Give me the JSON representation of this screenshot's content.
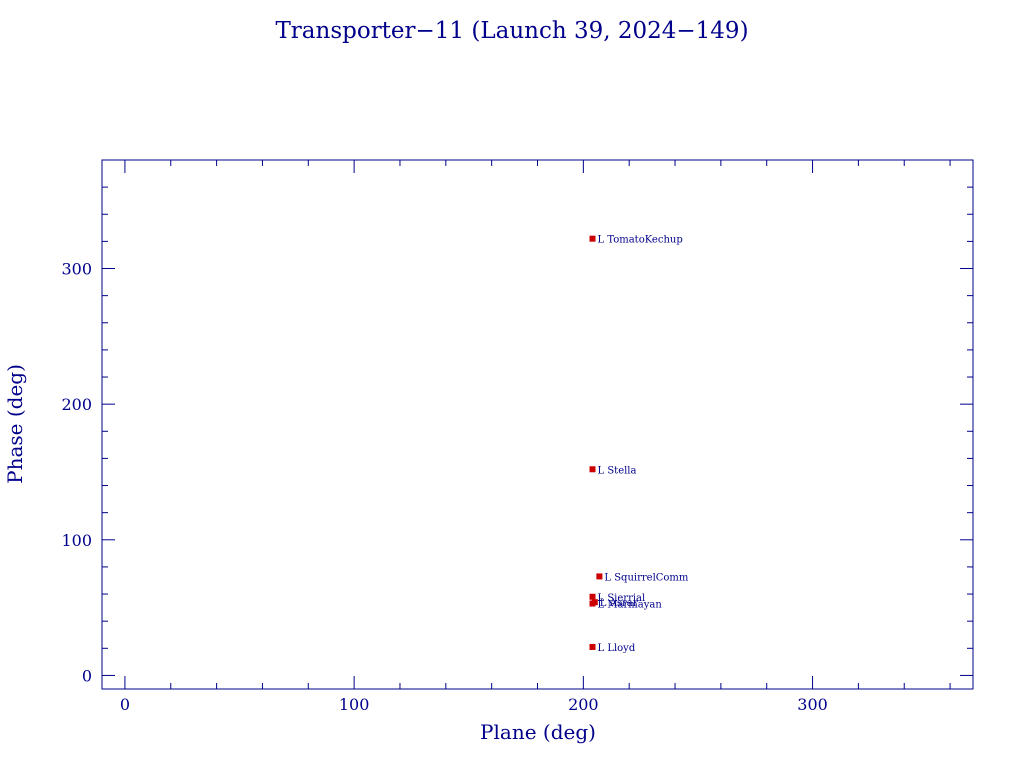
{
  "colors": {
    "axis": "#00008B",
    "text": "#00008B",
    "point": "#CC0000",
    "background": "#FFFFFF"
  },
  "chart_data": {
    "type": "scatter",
    "title": "Transporter−11 (Launch 39, 2024−149)",
    "xlabel": "Plane (deg)",
    "ylabel": "Phase (deg)",
    "xlim": [
      -10,
      370
    ],
    "ylim": [
      -10,
      380
    ],
    "xticks": [
      0,
      100,
      200,
      300
    ],
    "yticks": [
      0,
      100,
      200,
      300
    ],
    "grid": false,
    "legend": "none",
    "points": [
      {
        "x": 204,
        "y": 322,
        "label": "L TomatoKechup"
      },
      {
        "x": 204,
        "y": 152,
        "label": "L Stella"
      },
      {
        "x": 207,
        "y": 73,
        "label": "L SquirrelComm"
      },
      {
        "x": 204,
        "y": 58,
        "label": "L Sierrial"
      },
      {
        "x": 205,
        "y": 54,
        "label": "L Asrar"
      },
      {
        "x": 204,
        "y": 53,
        "label": "L Marmayan"
      },
      {
        "x": 204,
        "y": 21,
        "label": "L Lloyd"
      }
    ]
  }
}
